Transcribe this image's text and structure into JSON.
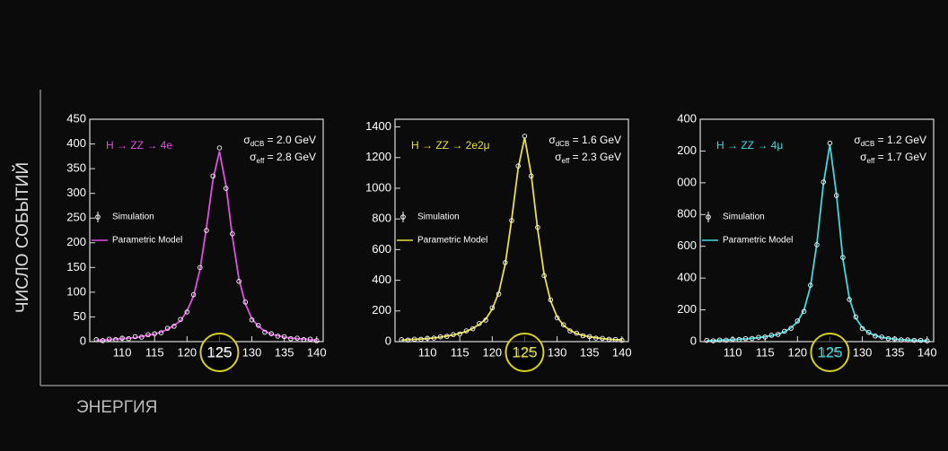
{
  "frame": {
    "y_label": "ЧИСЛО СОБЫТИЙ",
    "x_label": "ЭНЕРГИЯ"
  },
  "chart_data": [
    {
      "type": "line",
      "title": "H → ZZ → 4e",
      "title_color": "#e050e0",
      "annotations": [
        {
          "symbol": "σ",
          "sub": "dCB",
          "text": " = 2.0 GeV"
        },
        {
          "symbol": "σ",
          "sub": "eff",
          "text": " = 2.8 GeV"
        }
      ],
      "highlight": "125",
      "highlight_color": "#d8d020",
      "highlight_text_color": "#ffffff",
      "x": [
        106,
        107,
        108,
        109,
        110,
        111,
        112,
        113,
        114,
        115,
        116,
        117,
        118,
        119,
        120,
        121,
        122,
        123,
        124,
        125,
        126,
        127,
        128,
        129,
        130,
        131,
        132,
        133,
        134,
        135,
        136,
        137,
        138,
        139,
        140
      ],
      "series": [
        {
          "name": "Simulation",
          "color": "#ffffff",
          "values": [
            4,
            2,
            5,
            4,
            7,
            6,
            10,
            9,
            14,
            16,
            18,
            27,
            31,
            45,
            60,
            95,
            150,
            225,
            335,
            392,
            310,
            218,
            122,
            80,
            44,
            33,
            19,
            16,
            11,
            10,
            6,
            7,
            4,
            5,
            2
          ]
        },
        {
          "name": "Parametric Model",
          "color": "#e050e0",
          "values": [
            3,
            3,
            4,
            5,
            6,
            7,
            8,
            10,
            13,
            15,
            19,
            25,
            33,
            42,
            62,
            92,
            146,
            231,
            327,
            385,
            316,
            212,
            127,
            77,
            46,
            31,
            21,
            15,
            12,
            9,
            7,
            6,
            5,
            4,
            3
          ]
        }
      ],
      "xlim": [
        105,
        141
      ],
      "xticks": [
        110,
        115,
        120,
        125,
        130,
        135,
        140
      ],
      "ylim": [
        0,
        450
      ],
      "yticks": [
        0,
        50,
        100,
        150,
        200,
        250,
        300,
        350,
        400,
        450
      ]
    },
    {
      "type": "line",
      "title": "H → ZZ → 2e2μ",
      "title_color": "#e8e040",
      "annotations": [
        {
          "symbol": "σ",
          "sub": "dCB",
          "text": " = 1.6 GeV"
        },
        {
          "symbol": "σ",
          "sub": "eff",
          "text": " = 2.3 GeV"
        }
      ],
      "highlight": "125",
      "highlight_color": "#d8d020",
      "highlight_text_color": "#e8e040",
      "x": [
        106,
        107,
        108,
        109,
        110,
        111,
        112,
        113,
        114,
        115,
        116,
        117,
        118,
        119,
        120,
        121,
        122,
        123,
        124,
        125,
        126,
        127,
        128,
        129,
        130,
        131,
        132,
        133,
        134,
        135,
        136,
        137,
        138,
        139,
        140
      ],
      "series": [
        {
          "name": "Simulation",
          "color": "#ffffff",
          "values": [
            13,
            10,
            16,
            15,
            22,
            23,
            31,
            34,
            46,
            50,
            70,
            84,
            118,
            140,
            220,
            310,
            515,
            790,
            1145,
            1340,
            1080,
            745,
            430,
            272,
            155,
            110,
            70,
            55,
            38,
            33,
            23,
            21,
            15,
            14,
            9
          ]
        },
        {
          "name": "Parametric Model",
          "color": "#e8e040",
          "values": [
            11,
            12,
            15,
            17,
            20,
            24,
            29,
            36,
            44,
            53,
            67,
            86,
            113,
            146,
            213,
            319,
            505,
            798,
            1131,
            1330,
            1091,
            732,
            439,
            266,
            160,
            106,
            73,
            53,
            40,
            32,
            25,
            20,
            16,
            13,
            11
          ]
        }
      ],
      "xlim": [
        105,
        141
      ],
      "xticks": [
        110,
        115,
        120,
        125,
        130,
        135,
        140
      ],
      "ylim": [
        0,
        1450
      ],
      "yticks": [
        0,
        200,
        400,
        600,
        800,
        1000,
        1200,
        1400
      ]
    },
    {
      "type": "line",
      "title": "H → ZZ → 4μ",
      "title_color": "#40d8e0",
      "annotations": [
        {
          "symbol": "σ",
          "sub": "dCB",
          "text": " = 1.2 GeV"
        },
        {
          "symbol": "σ",
          "sub": "eff",
          "text": " = 1.7 GeV"
        }
      ],
      "highlight": "125",
      "highlight_color": "#d8d020",
      "highlight_text_color": "#40d8e0",
      "x": [
        106,
        107,
        108,
        109,
        110,
        111,
        112,
        113,
        114,
        115,
        116,
        117,
        118,
        119,
        120,
        121,
        122,
        123,
        124,
        125,
        126,
        127,
        128,
        129,
        130,
        131,
        132,
        133,
        134,
        135,
        136,
        137,
        138,
        139,
        140
      ],
      "series": [
        {
          "name": "Simulation",
          "color": "#ffffff",
          "values": [
            8,
            5,
            10,
            9,
            14,
            13,
            19,
            20,
            27,
            29,
            40,
            45,
            65,
            84,
            130,
            190,
            355,
            610,
            1005,
            1250,
            920,
            530,
            265,
            155,
            82,
            58,
            35,
            29,
            19,
            17,
            11,
            11,
            8,
            8,
            5
          ]
        },
        {
          "name": "Parametric Model",
          "color": "#40d8e0",
          "values": [
            6,
            7,
            9,
            10,
            12,
            15,
            17,
            21,
            25,
            31,
            37,
            47,
            62,
            87,
            124,
            198,
            347,
            620,
            992,
            1240,
            930,
            521,
            273,
            149,
            87,
            56,
            37,
            27,
            21,
            16,
            12,
            10,
            9,
            7,
            6
          ]
        }
      ],
      "xlim": [
        105,
        141
      ],
      "xticks": [
        110,
        115,
        120,
        125,
        130,
        135,
        140
      ],
      "ylim": [
        0,
        1400
      ],
      "yticks": [
        0,
        200,
        400,
        600,
        800,
        {
          "value": 1000,
          "label": "000"
        },
        {
          "value": 1200,
          "label": "200"
        },
        {
          "value": 1400,
          "label": "400"
        }
      ]
    }
  ]
}
